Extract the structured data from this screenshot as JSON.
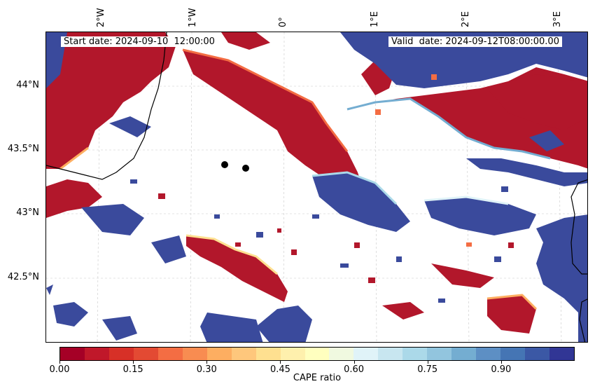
{
  "map": {
    "start_label": "Start date: 2024-09-10  12:00:00",
    "valid_label": "Valid  date: 2024-09-12T08:00:00.00",
    "lon_ticks": [
      "2°W",
      "1°W",
      "0°",
      "1°E",
      "2°E",
      "3°E"
    ],
    "lat_ticks": [
      "44°N",
      "43.5°N",
      "43°N",
      "42.5°N"
    ],
    "extent": {
      "lon": [
        -2.6,
        3.3
      ],
      "lat": [
        42.0,
        44.4
      ]
    }
  },
  "colorbar": {
    "title": "CAPE ratio",
    "ticks": [
      "0.00",
      "0.15",
      "0.30",
      "0.45",
      "0.60",
      "0.75",
      "0.90"
    ],
    "colors": [
      "#a50026",
      "#c0182a",
      "#d73027",
      "#e34a33",
      "#f46d43",
      "#f88c51",
      "#fdae61",
      "#fec77c",
      "#fee090",
      "#fef0ad",
      "#ffffbf",
      "#f0f9e0",
      "#e0f3f8",
      "#c8e6f0",
      "#abd9e9",
      "#92c5de",
      "#74add1",
      "#5d8fc4",
      "#4575b4",
      "#3b58a5",
      "#313695"
    ]
  },
  "colors": {
    "red": "#b2172b",
    "blue": "#3a4a9c",
    "mid_orange": "#f46d43",
    "mid_light": "#e0f3f8"
  }
}
